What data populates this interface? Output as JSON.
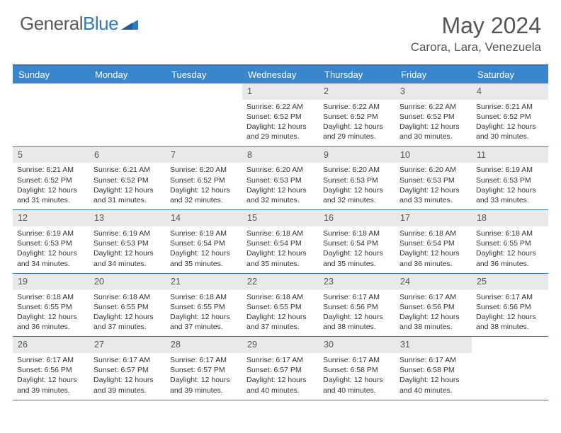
{
  "logo": {
    "textA": "General",
    "textB": "Blue"
  },
  "title": "May 2024",
  "location": "Carora, Lara, Venezuela",
  "colors": {
    "header_bg": "#3a86cc",
    "border": "#2f78c4",
    "daynum_bg": "#e8e9eb",
    "text": "#333333",
    "title_text": "#555555"
  },
  "weekdays": [
    "Sunday",
    "Monday",
    "Tuesday",
    "Wednesday",
    "Thursday",
    "Friday",
    "Saturday"
  ],
  "labels": {
    "sunrise": "Sunrise:",
    "sunset": "Sunset:",
    "daylight": "Daylight:"
  },
  "weeks": [
    [
      null,
      null,
      null,
      {
        "n": "1",
        "sr": "6:22 AM",
        "ss": "6:52 PM",
        "dl": "12 hours and 29 minutes."
      },
      {
        "n": "2",
        "sr": "6:22 AM",
        "ss": "6:52 PM",
        "dl": "12 hours and 29 minutes."
      },
      {
        "n": "3",
        "sr": "6:22 AM",
        "ss": "6:52 PM",
        "dl": "12 hours and 30 minutes."
      },
      {
        "n": "4",
        "sr": "6:21 AM",
        "ss": "6:52 PM",
        "dl": "12 hours and 30 minutes."
      }
    ],
    [
      {
        "n": "5",
        "sr": "6:21 AM",
        "ss": "6:52 PM",
        "dl": "12 hours and 31 minutes."
      },
      {
        "n": "6",
        "sr": "6:21 AM",
        "ss": "6:52 PM",
        "dl": "12 hours and 31 minutes."
      },
      {
        "n": "7",
        "sr": "6:20 AM",
        "ss": "6:52 PM",
        "dl": "12 hours and 32 minutes."
      },
      {
        "n": "8",
        "sr": "6:20 AM",
        "ss": "6:53 PM",
        "dl": "12 hours and 32 minutes."
      },
      {
        "n": "9",
        "sr": "6:20 AM",
        "ss": "6:53 PM",
        "dl": "12 hours and 32 minutes."
      },
      {
        "n": "10",
        "sr": "6:20 AM",
        "ss": "6:53 PM",
        "dl": "12 hours and 33 minutes."
      },
      {
        "n": "11",
        "sr": "6:19 AM",
        "ss": "6:53 PM",
        "dl": "12 hours and 33 minutes."
      }
    ],
    [
      {
        "n": "12",
        "sr": "6:19 AM",
        "ss": "6:53 PM",
        "dl": "12 hours and 34 minutes."
      },
      {
        "n": "13",
        "sr": "6:19 AM",
        "ss": "6:53 PM",
        "dl": "12 hours and 34 minutes."
      },
      {
        "n": "14",
        "sr": "6:19 AM",
        "ss": "6:54 PM",
        "dl": "12 hours and 35 minutes."
      },
      {
        "n": "15",
        "sr": "6:18 AM",
        "ss": "6:54 PM",
        "dl": "12 hours and 35 minutes."
      },
      {
        "n": "16",
        "sr": "6:18 AM",
        "ss": "6:54 PM",
        "dl": "12 hours and 35 minutes."
      },
      {
        "n": "17",
        "sr": "6:18 AM",
        "ss": "6:54 PM",
        "dl": "12 hours and 36 minutes."
      },
      {
        "n": "18",
        "sr": "6:18 AM",
        "ss": "6:55 PM",
        "dl": "12 hours and 36 minutes."
      }
    ],
    [
      {
        "n": "19",
        "sr": "6:18 AM",
        "ss": "6:55 PM",
        "dl": "12 hours and 36 minutes."
      },
      {
        "n": "20",
        "sr": "6:18 AM",
        "ss": "6:55 PM",
        "dl": "12 hours and 37 minutes."
      },
      {
        "n": "21",
        "sr": "6:18 AM",
        "ss": "6:55 PM",
        "dl": "12 hours and 37 minutes."
      },
      {
        "n": "22",
        "sr": "6:18 AM",
        "ss": "6:55 PM",
        "dl": "12 hours and 37 minutes."
      },
      {
        "n": "23",
        "sr": "6:17 AM",
        "ss": "6:56 PM",
        "dl": "12 hours and 38 minutes."
      },
      {
        "n": "24",
        "sr": "6:17 AM",
        "ss": "6:56 PM",
        "dl": "12 hours and 38 minutes."
      },
      {
        "n": "25",
        "sr": "6:17 AM",
        "ss": "6:56 PM",
        "dl": "12 hours and 38 minutes."
      }
    ],
    [
      {
        "n": "26",
        "sr": "6:17 AM",
        "ss": "6:56 PM",
        "dl": "12 hours and 39 minutes."
      },
      {
        "n": "27",
        "sr": "6:17 AM",
        "ss": "6:57 PM",
        "dl": "12 hours and 39 minutes."
      },
      {
        "n": "28",
        "sr": "6:17 AM",
        "ss": "6:57 PM",
        "dl": "12 hours and 39 minutes."
      },
      {
        "n": "29",
        "sr": "6:17 AM",
        "ss": "6:57 PM",
        "dl": "12 hours and 40 minutes."
      },
      {
        "n": "30",
        "sr": "6:17 AM",
        "ss": "6:58 PM",
        "dl": "12 hours and 40 minutes."
      },
      {
        "n": "31",
        "sr": "6:17 AM",
        "ss": "6:58 PM",
        "dl": "12 hours and 40 minutes."
      },
      null
    ]
  ]
}
